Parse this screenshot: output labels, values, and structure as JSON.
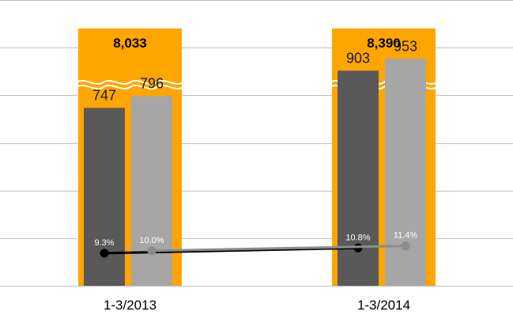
{
  "chart_data": {
    "type": "bar",
    "categories": [
      "1-3/2013",
      "1-3/2014"
    ],
    "totals": {
      "values": [
        8033,
        8390
      ],
      "labels": [
        "8,033",
        "8,390"
      ],
      "axis_break": true
    },
    "series": [
      {
        "values": [
          747,
          903
        ],
        "labels": [
          "747",
          "903"
        ]
      },
      {
        "values": [
          796,
          953
        ],
        "labels": [
          "796",
          "953"
        ]
      }
    ],
    "ratio_series": [
      {
        "values": [
          9.3,
          10.8
        ],
        "labels": [
          "9.3%",
          "10.8%"
        ]
      },
      {
        "values": [
          10.0,
          11.4
        ],
        "labels": [
          "10.0%",
          "11.4%"
        ]
      }
    ],
    "ylim": [
      0,
      1200
    ],
    "grid": true,
    "colors": {
      "total": "#FFA500",
      "series_dark": "#595959",
      "series_light": "#A6A6A6",
      "line_dark": "#000000",
      "line_light": "#8C8C8C",
      "grid": "#BFBFBF"
    }
  }
}
